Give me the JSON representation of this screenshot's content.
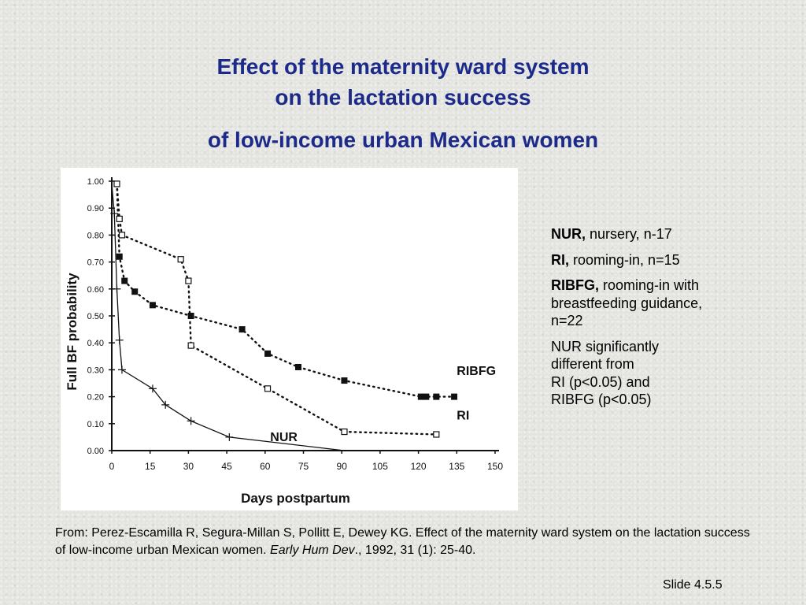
{
  "title": {
    "line1": "Effect of the maternity ward system",
    "line2": "on the lactation success",
    "line3": "of low-income urban Mexican women"
  },
  "legend": {
    "nur_abbr": "NUR,",
    "nur_text": " nursery, n-17",
    "ri_abbr": "RI,",
    "ri_text": " rooming-in, n=15",
    "ribfg_abbr": "RIBFG,",
    "ribfg_text": " rooming-in with breastfeeding guidance, n=22",
    "note_line1": "NUR significantly",
    "note_line2": "different  from",
    "note_line3": "RI (p<0.05) and",
    "note_line4": "RIBFG (p<0.05)"
  },
  "citation": {
    "text": "From: Perez-Escamilla R, Segura-Millan S, Pollitt E, Dewey KG. Effect of the maternity ward system on the lactation success of low-income urban Mexican women. ",
    "journal": "Early Hum Dev",
    "rest": "., 1992, 31 (1): 25-40."
  },
  "slide_number": "Slide 4.5.5",
  "chart_data": {
    "type": "line",
    "xlabel": "Days postpartum",
    "ylabel": "Full BF probability",
    "xlim": [
      0,
      150
    ],
    "ylim": [
      0,
      1.0
    ],
    "xticks": [
      "0",
      "15",
      "30",
      "45",
      "60",
      "75",
      "90",
      "105",
      "120",
      "135",
      "150"
    ],
    "yticks": [
      "0.00",
      "0.10",
      "0.20",
      "0.30",
      "0.40",
      "0.50",
      "0.60",
      "0.70",
      "0.80",
      "0.90",
      "1.00"
    ],
    "series": [
      {
        "name": "RIBFG",
        "marker": "filled-square",
        "line": "dotted",
        "x": [
          2,
          3,
          5,
          9,
          16,
          31,
          51,
          61,
          73,
          91,
          121,
          123,
          127,
          134
        ],
        "y": [
          0.99,
          0.72,
          0.63,
          0.59,
          0.54,
          0.5,
          0.45,
          0.36,
          0.31,
          0.26,
          0.2,
          0.2,
          0.2,
          0.2
        ]
      },
      {
        "name": "RI",
        "marker": "open-square",
        "line": "dotted",
        "x": [
          2,
          3,
          4,
          27,
          30,
          31,
          61,
          91,
          127
        ],
        "y": [
          0.99,
          0.86,
          0.8,
          0.71,
          0.63,
          0.39,
          0.23,
          0.07,
          0.06
        ]
      },
      {
        "name": "NUR",
        "marker": "plus",
        "line": "solid",
        "x": [
          0,
          1,
          2,
          3,
          4,
          16,
          21,
          31,
          46,
          91,
          150
        ],
        "y": [
          0.99,
          0.88,
          0.6,
          0.41,
          0.3,
          0.23,
          0.17,
          0.11,
          0.05,
          0.0,
          0.0
        ]
      }
    ]
  }
}
